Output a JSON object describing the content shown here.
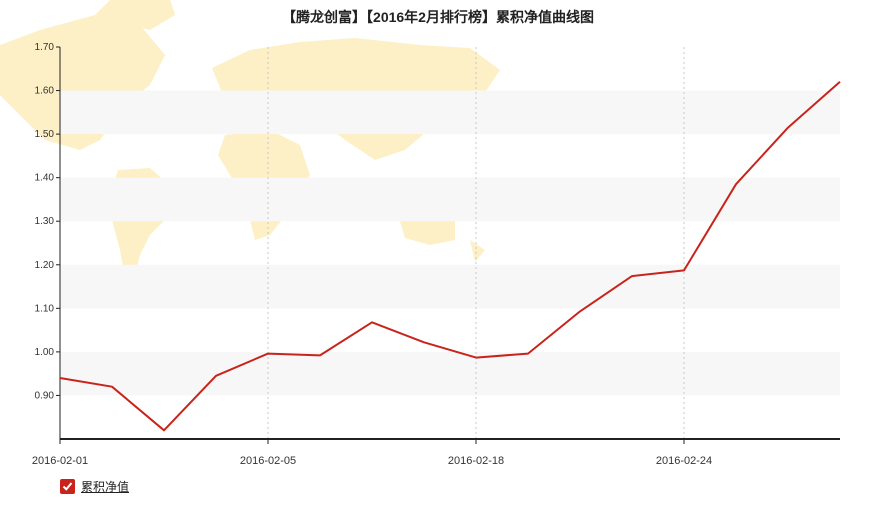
{
  "chart_data": {
    "type": "line",
    "title": "【腾龙创富】【2016年2月排行榜】累积净值曲线图",
    "xlabel": "",
    "ylabel": "",
    "ylim": [
      0.8,
      1.7
    ],
    "yticks": [
      "0.90",
      "1.00",
      "1.10",
      "1.20",
      "1.30",
      "1.40",
      "1.50",
      "1.60",
      "1.70"
    ],
    "xtick_labels": [
      "2016-02-01",
      "2016-02-05",
      "2016-02-18",
      "2016-02-24"
    ],
    "grid": "dotted vertical lines at labeled dates; alternating horizontal bands",
    "legend_placement": "bottom-left",
    "colors": {
      "line": "#c8241b",
      "band": "#f7f7f7",
      "map": "#fdf0c6",
      "axis": "#222222"
    },
    "series": [
      {
        "name": "累积净值",
        "x": [
          "2016-02-01",
          "",
          "",
          "",
          "2016-02-05",
          "",
          "",
          "",
          "2016-02-18",
          "",
          "",
          "",
          "2016-02-24",
          "",
          "",
          ""
        ],
        "values": [
          0.94,
          0.92,
          0.82,
          0.945,
          0.996,
          0.992,
          1.068,
          1.022,
          0.987,
          0.996,
          1.093,
          1.174,
          1.187,
          1.385,
          1.515,
          1.62
        ]
      }
    ]
  },
  "legend": {
    "checkbox_state": "checked"
  }
}
